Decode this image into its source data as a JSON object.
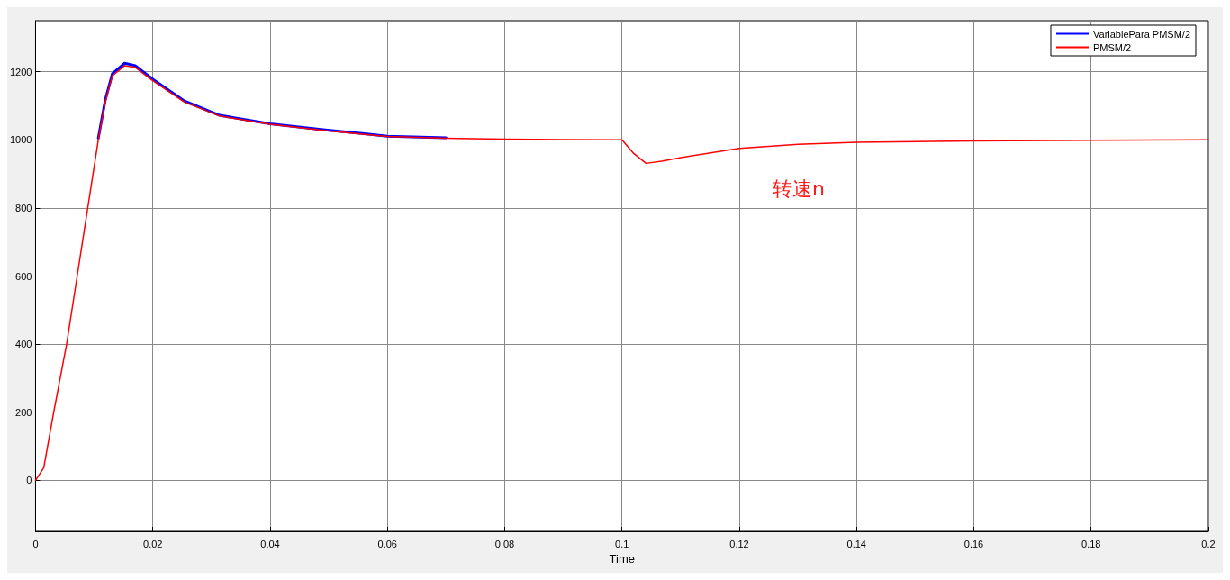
{
  "chart_data": {
    "type": "line",
    "xlabel": "Time",
    "xlim": [
      0,
      0.2
    ],
    "xticks": [
      0,
      0.02,
      0.04,
      0.06,
      0.08,
      0.1,
      0.12,
      0.14,
      0.16,
      0.18,
      0.2
    ],
    "ylim": [
      -150,
      1350
    ],
    "yticks": [
      0,
      200,
      400,
      600,
      800,
      1000,
      1200
    ],
    "grid": true,
    "legend": "top right",
    "marker": "none",
    "line_style": "solid",
    "annotations": [
      "转速n"
    ],
    "x": [
      0,
      0.0014,
      0.0031,
      0.0053,
      0.0071,
      0.0089,
      0.0107,
      0.0119,
      0.0131,
      0.0152,
      0.017,
      0.02,
      0.0254,
      0.0314,
      0.04,
      0.0494,
      0.0561,
      0.06,
      0.07,
      0.08,
      0.09,
      0.1,
      0.102,
      0.1041,
      0.107,
      0.11,
      0.12,
      0.13,
      0.14,
      0.16,
      0.18,
      0.2
    ],
    "series": [
      {
        "name": "VariablePara PMSM/2",
        "color": "#0000ff",
        "x": [
          0.0107,
          0.0119,
          0.0131,
          0.0152,
          0.017,
          0.02,
          0.0254,
          0.0314,
          0.04,
          0.0494,
          0.0561,
          0.06,
          0.07
        ],
        "values": [
          1005,
          1118,
          1194,
          1225,
          1218,
          1178,
          1114,
          1072,
          1047,
          1029,
          1018,
          1011,
          1006
        ]
      },
      {
        "name": "PMSM/2",
        "color": "#ff0000",
        "values": [
          0,
          37,
          200,
          400,
          600,
          800,
          1000,
          1112,
          1188,
          1218,
          1213,
          1174,
          1111,
          1070,
          1046,
          1027,
          1016,
          1010,
          1005,
          1002,
          1001,
          1000,
          960,
          931,
          938,
          948,
          975,
          987,
          993,
          997,
          999,
          1000
        ]
      }
    ]
  }
}
